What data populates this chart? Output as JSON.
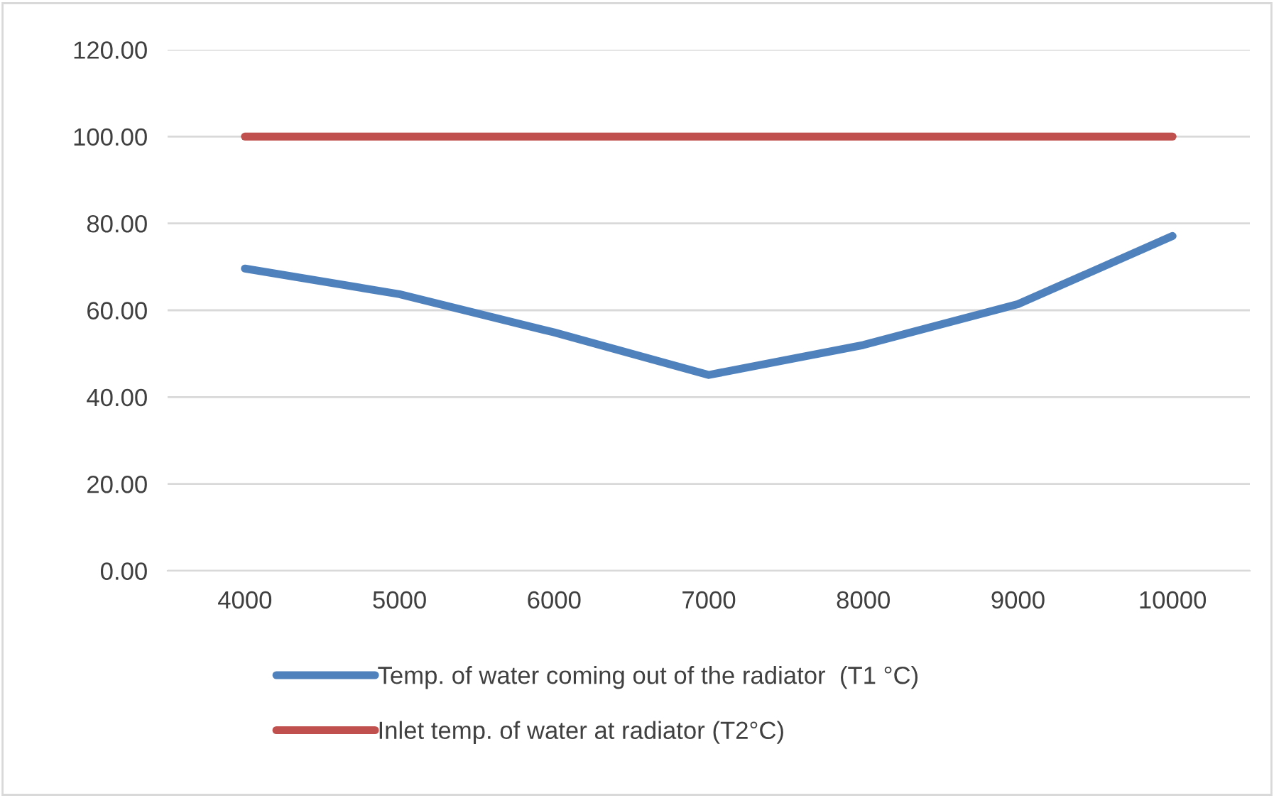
{
  "chart_data": {
    "type": "line",
    "categories": [
      "4000",
      "5000",
      "6000",
      "7000",
      "8000",
      "9000",
      "10000"
    ],
    "series": [
      {
        "name": "Temp. of water coming out of the radiator  (T1 °C)",
        "color": "#4f81bd",
        "values": [
          69.6,
          63.7,
          54.9,
          45.1,
          52.0,
          61.4,
          77.1
        ]
      },
      {
        "name": "Inlet temp. of water at radiator (T2°C)",
        "color": "#c0504d",
        "values": [
          100,
          100,
          100,
          100,
          100,
          100,
          100
        ]
      }
    ],
    "ylim": [
      0,
      120
    ],
    "yticks": [
      {
        "value": 0,
        "label": "0.00"
      },
      {
        "value": 20,
        "label": "20.00"
      },
      {
        "value": 40,
        "label": "40.00"
      },
      {
        "value": 60,
        "label": "60.00"
      },
      {
        "value": 80,
        "label": "80.00"
      },
      {
        "value": 100,
        "label": "100.00"
      },
      {
        "value": 120,
        "label": "120.00"
      }
    ],
    "grid": "y",
    "legend": "bottom",
    "marker": "none",
    "line_style": "solid"
  }
}
